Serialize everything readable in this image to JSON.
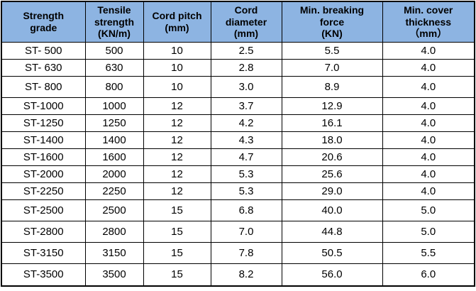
{
  "colors": {
    "header_bg": "#8DB4E2",
    "border": "#000000",
    "row_bg": "#FFFFFF",
    "text": "#000000"
  },
  "table": {
    "columns": [
      {
        "id": "strength-grade",
        "label": "Strength\ngrade"
      },
      {
        "id": "tensile-strength",
        "label": "Tensile\nstrength\n(KN/m)"
      },
      {
        "id": "cord-pitch",
        "label": "Cord pitch\n(mm)"
      },
      {
        "id": "cord-diameter",
        "label": "Cord\ndiameter\n(mm)"
      },
      {
        "id": "min-breaking-force",
        "label": "Min. breaking\nforce\n(KN)"
      },
      {
        "id": "min-cover-thickness",
        "label": "Min. cover\nthickness\n（mm）"
      }
    ],
    "rows": [
      [
        "ST- 500",
        "500",
        "10",
        "2.5",
        "5.5",
        "4.0"
      ],
      [
        "ST- 630",
        "630",
        "10",
        "2.8",
        "7.0",
        "4.0"
      ],
      [
        "ST- 800",
        "800",
        "10",
        "3.0",
        "8.9",
        "4.0"
      ],
      [
        "ST-1000",
        "1000",
        "12",
        "3.7",
        "12.9",
        "4.0"
      ],
      [
        "ST-1250",
        "1250",
        "12",
        "4.2",
        "16.1",
        "4.0"
      ],
      [
        "ST-1400",
        "1400",
        "12",
        "4.3",
        "18.0",
        "4.0"
      ],
      [
        "ST-1600",
        "1600",
        "12",
        "4.7",
        "20.6",
        "4.0"
      ],
      [
        "ST-2000",
        "2000",
        "12",
        "5.3",
        "25.6",
        "4.0"
      ],
      [
        "ST-2250",
        "2250",
        "12",
        "5.3",
        "29.0",
        "4.0"
      ],
      [
        "ST-2500",
        "2500",
        "15",
        "6.8",
        "40.0",
        "5.0"
      ],
      [
        "ST-2800",
        "2800",
        "15",
        "7.0",
        "44.8",
        "5.0"
      ],
      [
        "ST-3150",
        "3150",
        "15",
        "7.8",
        "50.5",
        "5.5"
      ],
      [
        "ST-3500",
        "3500",
        "15",
        "8.2",
        "56.0",
        "6.0"
      ]
    ]
  }
}
